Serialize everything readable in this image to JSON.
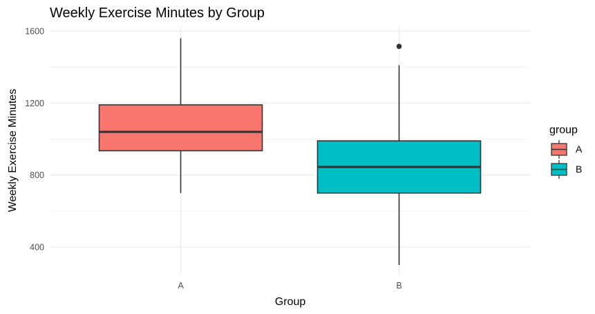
{
  "chart_data": {
    "type": "boxplot",
    "title": "Weekly Exercise Minutes by Group",
    "xlabel": "Group",
    "ylabel": "Weekly Exercise Minutes",
    "categories": [
      "A",
      "B"
    ],
    "y_ticks": [
      400,
      800,
      1200,
      1600
    ],
    "ylim": [
      250,
      1630
    ],
    "grid": true,
    "legend": {
      "title": "group",
      "position": "right"
    },
    "series": [
      {
        "name": "A",
        "color": "#F8766D",
        "min": 700,
        "q1": 935,
        "median": 1040,
        "q3": 1190,
        "max": 1560,
        "outliers": []
      },
      {
        "name": "B",
        "color": "#00BFC4",
        "min": 300,
        "q1": 700,
        "median": 845,
        "q3": 990,
        "max": 1410,
        "outliers": [
          1515
        ]
      }
    ]
  }
}
